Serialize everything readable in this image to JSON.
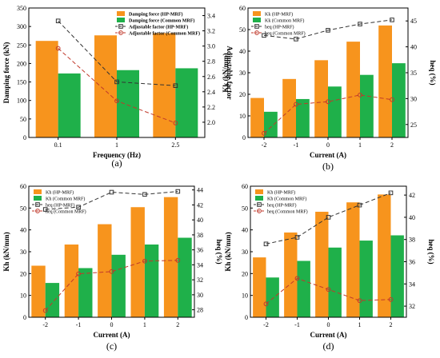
{
  "colors": {
    "orange": "#f7941d",
    "green": "#1fb04a",
    "hp_line": "#333333",
    "common_line": "#c0392b"
  },
  "chart_data": [
    {
      "panel": "a",
      "caption": "(a)",
      "type": "bar",
      "categories": [
        "0.1",
        "1",
        "2.5"
      ],
      "xlabel": "Frequency (Hz)",
      "ylabel": "Damping force (kN)",
      "ylabel_right": "Adjustable factor",
      "ylim": [
        0,
        350
      ],
      "yticks": [
        "0",
        "50",
        "100",
        "150",
        "200",
        "250",
        "300",
        "350"
      ],
      "ylim_right": [
        1.8,
        3.5
      ],
      "yticks_right": [
        "2.0",
        "2.2",
        "2.4",
        "2.6",
        "2.8",
        "3.0",
        "3.2",
        "3.4"
      ],
      "bars": [
        {
          "name": "Damping force (HP-MRF)",
          "color_key": "orange",
          "values": [
            261,
            276,
            282
          ]
        },
        {
          "name": "Damping force (Common MRF)",
          "color_key": "green",
          "values": [
            173,
            182,
            187
          ]
        }
      ],
      "lines": [
        {
          "name": "Adjustable factor (HP-MRF)",
          "color_key": "hp_line",
          "marker": "square",
          "values": [
            3.33,
            2.53,
            2.48
          ]
        },
        {
          "name": "Adjustable factor (Common MRF)",
          "color_key": "common_line",
          "marker": "circle",
          "values": [
            2.97,
            2.28,
            1.99
          ]
        }
      ]
    },
    {
      "panel": "b",
      "caption": "(b)",
      "type": "bar",
      "categories": [
        "-2",
        "-1",
        "0",
        "1",
        "2"
      ],
      "xlabel": "Current (A)",
      "ylabel": "Kk (kN/mm)",
      "ylabel_right": "heq (%)",
      "ylim": [
        0,
        60
      ],
      "yticks": [
        "0",
        "10",
        "20",
        "30",
        "40",
        "50",
        "60"
      ],
      "ylim_right": [
        22.5,
        47.5
      ],
      "yticks_right": [
        "25",
        "30",
        "35",
        "40",
        "45"
      ],
      "bars": [
        {
          "name": "Kk (HP-MRF)",
          "color_key": "orange",
          "values": [
            18.3,
            27.1,
            35.8,
            44.4,
            51.9
          ]
        },
        {
          "name": "Kk (Common MRF)",
          "color_key": "green",
          "values": [
            11.9,
            17.8,
            23.6,
            29.0,
            34.4
          ]
        }
      ],
      "lines": [
        {
          "name": "heq (HP-MRF)",
          "color_key": "hp_line",
          "marker": "square",
          "values": [
            42.2,
            41.5,
            43.2,
            44.4,
            45.2
          ]
        },
        {
          "name": "heq (Common MRF)",
          "color_key": "common_line",
          "marker": "circle",
          "values": [
            23.3,
            28.9,
            29.4,
            30.7,
            29.8
          ]
        }
      ]
    },
    {
      "panel": "c",
      "caption": "(c)",
      "type": "bar",
      "categories": [
        "-2",
        "-1",
        "0",
        "1",
        "2"
      ],
      "xlabel": "Current (A)",
      "ylabel": "Kh (kN/mm)",
      "ylabel_right": "heq (%)",
      "ylim": [
        0,
        60
      ],
      "yticks": [
        "0",
        "10",
        "20",
        "30",
        "40",
        "50",
        "60"
      ],
      "ylim_right": [
        27,
        44.5
      ],
      "yticks_right": [
        "28",
        "30",
        "32",
        "34",
        "36",
        "38",
        "40",
        "42",
        "44"
      ],
      "bars": [
        {
          "name": "Kh (HP-MRF)",
          "color_key": "orange",
          "values": [
            23.6,
            33.3,
            42.6,
            50.4,
            55.0
          ]
        },
        {
          "name": "Kh (Common MRF)",
          "color_key": "green",
          "values": [
            15.7,
            22.5,
            28.6,
            33.3,
            36.4
          ]
        }
      ],
      "lines": [
        {
          "name": "heq (HP-MRF)",
          "color_key": "hp_line",
          "marker": "square",
          "values": [
            41.4,
            41.7,
            43.7,
            43.4,
            43.8
          ]
        },
        {
          "name": "heq (Common MRF)",
          "color_key": "common_line",
          "marker": "circle",
          "values": [
            27.9,
            32.8,
            33.1,
            34.5,
            34.6
          ]
        }
      ]
    },
    {
      "panel": "d",
      "caption": "(d)",
      "type": "bar",
      "categories": [
        "-2",
        "-1",
        "0",
        "1",
        "2"
      ],
      "xlabel": "Current (A)",
      "ylabel": "Kh (kN/mm)",
      "ylabel_right": "heq (%)",
      "ylim": [
        0,
        60
      ],
      "yticks": [
        "0",
        "10",
        "20",
        "30",
        "40",
        "50",
        "60"
      ],
      "ylim_right": [
        31,
        42.8
      ],
      "yticks_right": [
        "32",
        "34",
        "36",
        "38",
        "40",
        "42"
      ],
      "bars": [
        {
          "name": "Kh (HP-MRF)",
          "color_key": "orange",
          "values": [
            27.4,
            38.8,
            48.3,
            52.6,
            56.2
          ]
        },
        {
          "name": "Kh (Common MRF)",
          "color_key": "green",
          "values": [
            18.2,
            25.8,
            31.9,
            35.1,
            37.5
          ]
        }
      ],
      "lines": [
        {
          "name": "heq (HP-MRF)",
          "color_key": "hp_line",
          "marker": "square",
          "values": [
            37.6,
            38.2,
            40.0,
            41.1,
            42.2
          ]
        },
        {
          "name": "heq (Common MRF)",
          "color_key": "common_line",
          "marker": "circle",
          "values": [
            32.2,
            34.5,
            33.5,
            32.5,
            32.6
          ]
        }
      ]
    }
  ]
}
